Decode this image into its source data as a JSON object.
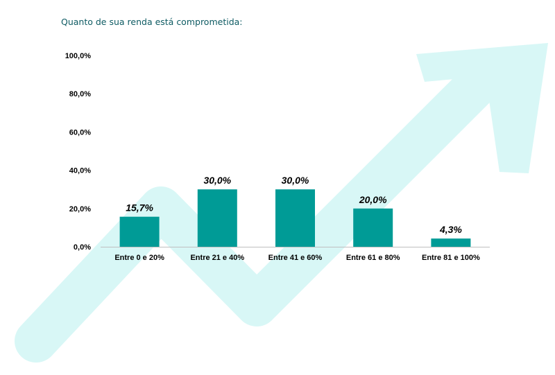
{
  "header": {
    "subtitle": "Quanto de sua renda está comprometida:"
  },
  "colors": {
    "bar": "#009b96",
    "arrow": "#d8f7f6",
    "axis": "#bfbfbf",
    "text": "#000000",
    "subtitle": "#0e5b63"
  },
  "chart_data": {
    "type": "bar",
    "categories": [
      "Entre 0 e 20%",
      "Entre 21 e 40%",
      "Entre 41 e 60%",
      "Entre 61 e 80%",
      "Entre 81 e 100%"
    ],
    "values": [
      15.7,
      30.0,
      30.0,
      20.0,
      4.3
    ],
    "data_labels": [
      "15,7%",
      "30,0%",
      "30,0%",
      "20,0%",
      "4,3%"
    ],
    "y_ticks": [
      "0,0%",
      "20,0%",
      "40,0%",
      "60,0%",
      "80,0%",
      "100,0%"
    ],
    "ylim": [
      0,
      100
    ],
    "grid": false,
    "background": "arrow-trend-up"
  }
}
